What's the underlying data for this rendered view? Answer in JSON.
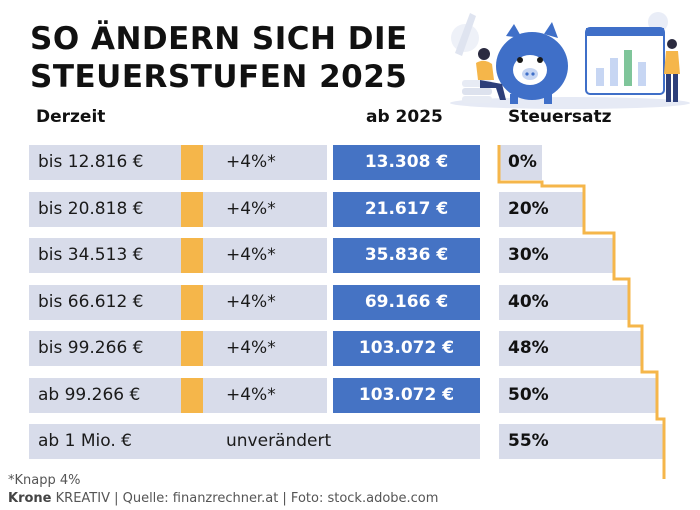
{
  "title_line1": "SO ÄNDERN SICH DIE",
  "title_line2": "STEUERSTUFEN 2025",
  "headers": {
    "current": "Derzeit",
    "new": "ab 2025",
    "rate": "Steuersatz"
  },
  "colors": {
    "row_bg": "#d8dcea",
    "highlight_blue": "#4573c4",
    "accent_yellow": "#f5b64a"
  },
  "chart_data": {
    "type": "table",
    "columns": [
      "Derzeit",
      "",
      "ab 2025",
      "Steuersatz"
    ],
    "rows": [
      {
        "current": "bis 12.816 €",
        "change": "+4%*",
        "new": "13.308 €",
        "rate": "0%",
        "rate_value": 0
      },
      {
        "current": "bis 20.818 €",
        "change": "+4%*",
        "new": "21.617 €",
        "rate": "20%",
        "rate_value": 20
      },
      {
        "current": "bis 34.513 €",
        "change": "+4%*",
        "new": "35.836 €",
        "rate": "30%",
        "rate_value": 30
      },
      {
        "current": "bis 66.612 €",
        "change": "+4%*",
        "new": "69.166 €",
        "rate": "40%",
        "rate_value": 40
      },
      {
        "current": "bis 99.266 €",
        "change": "+4%*",
        "new": "103.072 €",
        "rate": "48%",
        "rate_value": 48
      },
      {
        "current": "ab 99.266 €",
        "change": "+4%*",
        "new": "103.072 €",
        "rate": "50%",
        "rate_value": 50
      },
      {
        "current": "ab 1 Mio.  €",
        "change": "unverändert",
        "new": "",
        "rate": "55%",
        "rate_value": 55
      }
    ]
  },
  "footnote": "*Knapp 4%",
  "credit": {
    "brand": "Krone",
    "rest": " KREATIV | Quelle: finanzrechner.at | Foto: stock.adobe.com"
  }
}
